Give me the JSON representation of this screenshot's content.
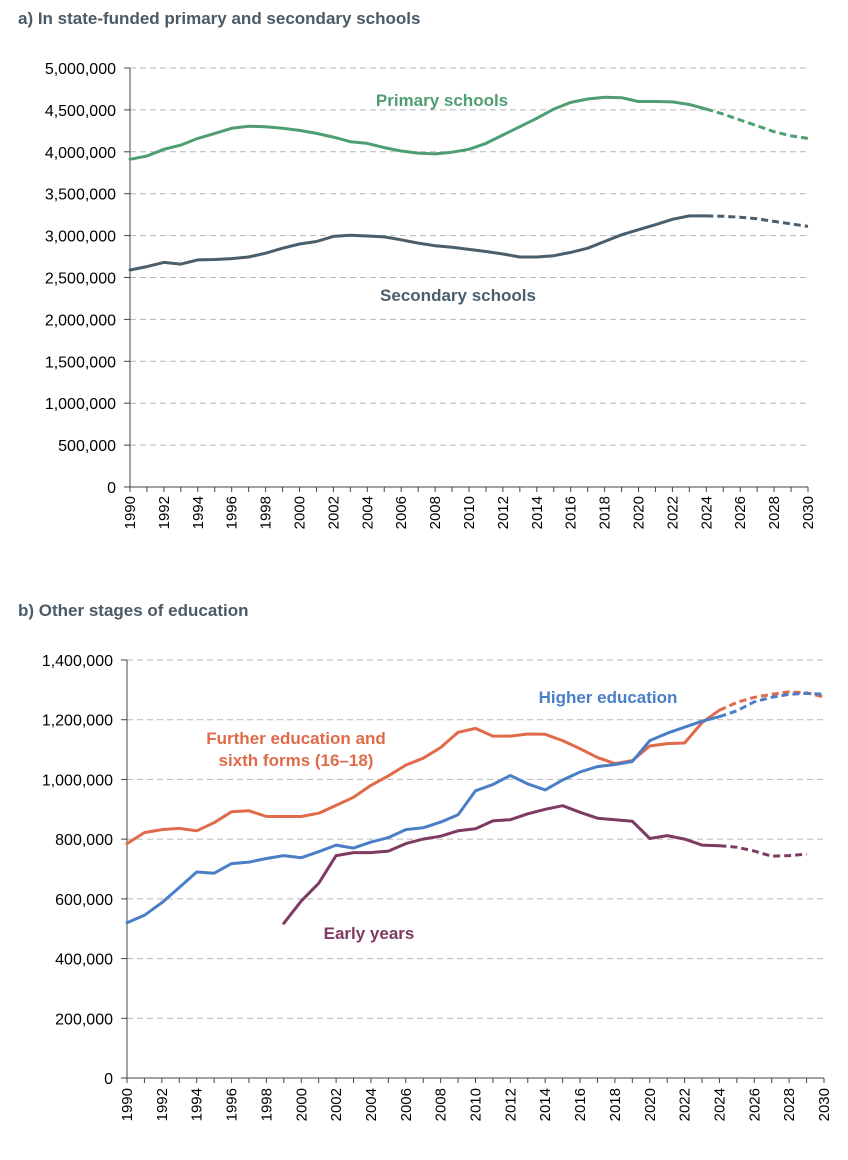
{
  "chart_data": [
    {
      "type": "line",
      "title": "a)   In state-funded primary and secondary schools",
      "xlabel": "",
      "ylabel": "",
      "xlim": [
        1990,
        2030
      ],
      "ylim": [
        0,
        5000000
      ],
      "y_ticks": [
        "0",
        "500,000",
        "1,000,000",
        "1,500,000",
        "2,000,000",
        "2,500,000",
        "3,000,000",
        "3,500,000",
        "4,000,000",
        "4,500,000",
        "5,000,000"
      ],
      "x_ticks": [
        "1990",
        "1992",
        "1994",
        "1996",
        "1998",
        "2000",
        "2002",
        "2004",
        "2006",
        "2008",
        "2010",
        "2012",
        "2014",
        "2016",
        "2018",
        "2020",
        "2022",
        "2024",
        "2026",
        "2028",
        "2030"
      ],
      "grid": "horizontal dashed",
      "legend": "direct labels on lines",
      "series": [
        {
          "name": "Primary schools",
          "color": "#4e9e72",
          "x": [
            1990,
            1991,
            1992,
            1993,
            1994,
            1995,
            1996,
            1997,
            1998,
            1999,
            2000,
            2001,
            2002,
            2003,
            2004,
            2005,
            2006,
            2007,
            2008,
            2009,
            2010,
            2011,
            2012,
            2013,
            2014,
            2015,
            2016,
            2017,
            2018,
            2019,
            2020,
            2021,
            2022,
            2023,
            2024
          ],
          "values": [
            3910000,
            3950000,
            4030000,
            4080000,
            4160000,
            4220000,
            4280000,
            4305000,
            4300000,
            4280000,
            4255000,
            4220000,
            4175000,
            4120000,
            4100000,
            4050000,
            4010000,
            3985000,
            3975000,
            3995000,
            4030000,
            4100000,
            4200000,
            4300000,
            4400000,
            4510000,
            4590000,
            4630000,
            4650000,
            4645000,
            4600000,
            4600000,
            4595000,
            4565000,
            4510000
          ],
          "projected_x": [
            2024,
            2025,
            2026,
            2027,
            2028,
            2029,
            2030
          ],
          "projected_values": [
            4510000,
            4450000,
            4380000,
            4310000,
            4240000,
            4190000,
            4160000
          ]
        },
        {
          "name": "Secondary schools",
          "color": "#4a5e6c",
          "x": [
            1990,
            1991,
            1992,
            1993,
            1994,
            1995,
            1996,
            1997,
            1998,
            1999,
            2000,
            2001,
            2002,
            2003,
            2004,
            2005,
            2006,
            2007,
            2008,
            2009,
            2010,
            2011,
            2012,
            2013,
            2014,
            2015,
            2016,
            2017,
            2018,
            2019,
            2020,
            2021,
            2022,
            2023,
            2024
          ],
          "values": [
            2590000,
            2630000,
            2680000,
            2660000,
            2710000,
            2715000,
            2725000,
            2745000,
            2790000,
            2850000,
            2900000,
            2930000,
            2990000,
            3005000,
            2995000,
            2985000,
            2950000,
            2910000,
            2880000,
            2860000,
            2835000,
            2810000,
            2780000,
            2745000,
            2745000,
            2760000,
            2800000,
            2850000,
            2930000,
            3010000,
            3070000,
            3130000,
            3195000,
            3235000,
            3235000
          ],
          "projected_x": [
            2024,
            2025,
            2026,
            2027,
            2028,
            2029,
            2030
          ],
          "projected_values": [
            3235000,
            3230000,
            3220000,
            3200000,
            3170000,
            3140000,
            3110000
          ]
        }
      ]
    },
    {
      "type": "line",
      "title": "b)   Other stages of education",
      "xlabel": "",
      "ylabel": "",
      "xlim": [
        1990,
        2030
      ],
      "ylim": [
        0,
        1400000
      ],
      "y_ticks": [
        "0",
        "200,000",
        "400,000",
        "600,000",
        "800,000",
        "1,000,000",
        "1,200,000",
        "1,400,000"
      ],
      "x_ticks": [
        "1990",
        "1992",
        "1994",
        "1996",
        "1998",
        "2000",
        "2002",
        "2004",
        "2006",
        "2008",
        "2010",
        "2012",
        "2014",
        "2016",
        "2018",
        "2020",
        "2022",
        "2024",
        "2026",
        "2028",
        "2030"
      ],
      "grid": "horizontal dashed",
      "legend": "direct labels on lines",
      "series": [
        {
          "name": "Further education and sixth forms (16–18)",
          "name_lines": [
            "Further education and",
            "sixth forms (16–18)"
          ],
          "color": "#e06a4a",
          "x": [
            1990,
            1991,
            1992,
            1993,
            1994,
            1995,
            1996,
            1997,
            1998,
            1999,
            2000,
            2001,
            2002,
            2003,
            2004,
            2005,
            2006,
            2007,
            2008,
            2009,
            2010,
            2011,
            2012,
            2013,
            2014,
            2015,
            2016,
            2017,
            2018,
            2019,
            2020,
            2021,
            2022,
            2023,
            2024
          ],
          "values": [
            785000,
            822000,
            832000,
            836000,
            828000,
            855000,
            892000,
            895000,
            876000,
            876000,
            876000,
            887000,
            913000,
            940000,
            980000,
            1012000,
            1048000,
            1071000,
            1107000,
            1158000,
            1171000,
            1145000,
            1145000,
            1152000,
            1151000,
            1130000,
            1103000,
            1073000,
            1053000,
            1063000,
            1112000,
            1120000,
            1122000,
            1190000,
            1232000
          ],
          "projected_x": [
            2024,
            2025,
            2026,
            2027,
            2028,
            2029,
            2030
          ],
          "projected_values": [
            1232000,
            1258000,
            1275000,
            1285000,
            1293000,
            1290000,
            1276000
          ]
        },
        {
          "name": "Higher education",
          "color": "#4a7ec7",
          "x": [
            1990,
            1991,
            1992,
            1993,
            1994,
            1995,
            1996,
            1997,
            1998,
            1999,
            2000,
            2001,
            2002,
            2003,
            2004,
            2005,
            2006,
            2007,
            2008,
            2009,
            2010,
            2011,
            2012,
            2013,
            2014,
            2015,
            2016,
            2017,
            2018,
            2019,
            2020,
            2021,
            2022,
            2023,
            2024
          ],
          "values": [
            520000,
            545000,
            587000,
            638000,
            690000,
            686000,
            718000,
            723000,
            735000,
            745000,
            738000,
            758000,
            780000,
            770000,
            790000,
            805000,
            832000,
            838000,
            857000,
            882000,
            962000,
            983000,
            1013000,
            985000,
            965000,
            998000,
            1025000,
            1043000,
            1050000,
            1060000,
            1130000,
            1155000,
            1175000,
            1195000,
            1210000
          ],
          "projected_x": [
            2024,
            2025,
            2026,
            2027,
            2028,
            2029,
            2030
          ],
          "projected_values": [
            1210000,
            1230000,
            1260000,
            1275000,
            1285000,
            1288000,
            1285000
          ]
        },
        {
          "name": "Early years",
          "color": "#7e3b62",
          "x": [
            1999,
            2000,
            2001,
            2002,
            2003,
            2004,
            2005,
            2006,
            2007,
            2008,
            2009,
            2010,
            2011,
            2012,
            2013,
            2014,
            2015,
            2016,
            2017,
            2018,
            2019,
            2020,
            2021,
            2022,
            2023,
            2024
          ],
          "values": [
            518000,
            593000,
            652000,
            745000,
            755000,
            755000,
            760000,
            785000,
            800000,
            810000,
            828000,
            835000,
            861000,
            865000,
            885000,
            900000,
            912000,
            890000,
            870000,
            865000,
            860000,
            802000,
            812000,
            800000,
            780000,
            778000
          ],
          "projected_x": [
            2024,
            2025,
            2026,
            2027,
            2028,
            2029
          ],
          "projected_values": [
            778000,
            773000,
            760000,
            743000,
            745000,
            750000
          ]
        }
      ]
    }
  ]
}
